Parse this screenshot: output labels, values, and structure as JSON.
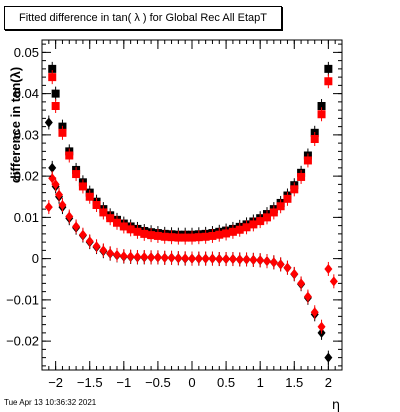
{
  "title": "Fitted difference in tan( λ ) for Global Rec All EtapT",
  "timestamp": "Tue Apr 13 10:36:32 2021",
  "chart_data": {
    "type": "scatter",
    "xlabel": "η",
    "ylabel": "difference in tan(λ)",
    "xlim": [
      -2.2,
      2.2
    ],
    "ylim": [
      -0.027,
      0.053
    ],
    "grid": false,
    "xticks": [
      {
        "v": -2,
        "label": "−2"
      },
      {
        "v": -1.5,
        "label": "−1.5"
      },
      {
        "v": -1,
        "label": "−1"
      },
      {
        "v": -0.5,
        "label": "−0.5"
      },
      {
        "v": 0,
        "label": "0"
      },
      {
        "v": 0.5,
        "label": "0.5"
      },
      {
        "v": 1,
        "label": "1"
      },
      {
        "v": 1.5,
        "label": "1.5"
      },
      {
        "v": 2,
        "label": "2"
      }
    ],
    "yticks": [
      {
        "v": -0.02,
        "label": "−0.02"
      },
      {
        "v": -0.01,
        "label": "−0.01"
      },
      {
        "v": 0,
        "label": "0"
      },
      {
        "v": 0.01,
        "label": "0.01"
      },
      {
        "v": 0.02,
        "label": "0.02"
      },
      {
        "v": 0.03,
        "label": "0.03"
      },
      {
        "v": 0.04,
        "label": "0.04"
      },
      {
        "v": 0.05,
        "label": "0.05"
      }
    ],
    "series": [
      {
        "marker": "square",
        "color": "#000000",
        "x": [
          -2.05,
          -2.0,
          -1.9,
          -1.8,
          -1.7,
          -1.6,
          -1.5,
          -1.4,
          -1.3,
          -1.2,
          -1.1,
          -1.0,
          -0.9,
          -0.8,
          -0.7,
          -0.6,
          -0.5,
          -0.4,
          -0.3,
          -0.2,
          -0.1,
          0.0,
          0.1,
          0.2,
          0.3,
          0.4,
          0.5,
          0.6,
          0.7,
          0.8,
          0.9,
          1.0,
          1.1,
          1.2,
          1.3,
          1.4,
          1.5,
          1.6,
          1.7,
          1.8,
          1.9,
          2.0
        ],
        "y": [
          0.046,
          0.04,
          0.032,
          0.026,
          0.0215,
          0.0185,
          0.016,
          0.0138,
          0.012,
          0.0105,
          0.0094,
          0.0085,
          0.0078,
          0.0072,
          0.0067,
          0.0064,
          0.0062,
          0.006,
          0.0059,
          0.0058,
          0.0058,
          0.0058,
          0.0059,
          0.006,
          0.0062,
          0.0065,
          0.0068,
          0.0072,
          0.0077,
          0.0083,
          0.009,
          0.0098,
          0.0108,
          0.012,
          0.0135,
          0.0153,
          0.0178,
          0.0208,
          0.025,
          0.0305,
          0.037,
          0.046
        ]
      },
      {
        "marker": "square",
        "color": "#ff0000",
        "x": [
          -2.05,
          -2.0,
          -1.9,
          -1.8,
          -1.7,
          -1.6,
          -1.5,
          -1.4,
          -1.3,
          -1.2,
          -1.1,
          -1.0,
          -0.9,
          -0.8,
          -0.7,
          -0.6,
          -0.5,
          -0.4,
          -0.3,
          -0.2,
          -0.1,
          0.0,
          0.1,
          0.2,
          0.3,
          0.4,
          0.5,
          0.6,
          0.7,
          0.8,
          0.9,
          1.0,
          1.1,
          1.2,
          1.3,
          1.4,
          1.5,
          1.6,
          1.7,
          1.8,
          1.9,
          2.0
        ],
        "y": [
          0.044,
          0.037,
          0.0305,
          0.025,
          0.0205,
          0.0175,
          0.015,
          0.013,
          0.0112,
          0.0098,
          0.0087,
          0.0078,
          0.0071,
          0.0065,
          0.006,
          0.0057,
          0.0055,
          0.0053,
          0.0052,
          0.0051,
          0.0051,
          0.0051,
          0.0052,
          0.0053,
          0.0055,
          0.0058,
          0.0061,
          0.0065,
          0.007,
          0.0076,
          0.0083,
          0.0091,
          0.01,
          0.0112,
          0.0127,
          0.0145,
          0.0168,
          0.0198,
          0.0238,
          0.029,
          0.035,
          0.043
        ]
      },
      {
        "marker": "diamond",
        "color": "#000000",
        "x": [
          -2.1,
          -2.05,
          -2.0,
          -1.95,
          -1.9,
          -1.8,
          -1.7,
          -1.6,
          -1.5,
          -1.4,
          -1.3,
          -1.2,
          -1.1,
          -1.0,
          -0.9,
          -0.8,
          -0.7,
          -0.6,
          -0.5,
          -0.4,
          -0.3,
          -0.2,
          -0.1,
          0.0,
          0.1,
          0.2,
          0.3,
          0.4,
          0.5,
          0.6,
          0.7,
          0.8,
          0.9,
          1.0,
          1.1,
          1.2,
          1.3,
          1.4,
          1.5,
          1.6,
          1.7,
          1.8,
          1.9,
          2.0
        ],
        "y": [
          0.033,
          0.022,
          0.0175,
          0.015,
          0.0125,
          0.0098,
          0.0075,
          0.0056,
          0.004,
          0.0028,
          0.0018,
          0.0012,
          0.0008,
          0.0005,
          0.0004,
          0.0003,
          0.0003,
          0.0003,
          0.0003,
          0.0002,
          0.0002,
          0.0001,
          0.0,
          0.0,
          0.0,
          0.0,
          0.0,
          -0.0001,
          -0.0001,
          -0.0001,
          -0.0002,
          -0.0002,
          -0.0003,
          -0.0004,
          -0.0006,
          -0.0009,
          -0.0014,
          -0.0022,
          -0.0038,
          -0.0062,
          -0.0095,
          -0.0135,
          -0.018,
          -0.024
        ]
      },
      {
        "marker": "diamond",
        "color": "#ff0000",
        "x": [
          -2.1,
          -2.05,
          -2.0,
          -1.95,
          -1.9,
          -1.8,
          -1.7,
          -1.6,
          -1.5,
          -1.4,
          -1.3,
          -1.2,
          -1.1,
          -1.0,
          -0.9,
          -0.8,
          -0.7,
          -0.6,
          -0.5,
          -0.4,
          -0.3,
          -0.2,
          -0.1,
          0.0,
          0.1,
          0.2,
          0.3,
          0.4,
          0.5,
          0.6,
          0.7,
          0.8,
          0.9,
          1.0,
          1.1,
          1.2,
          1.3,
          1.4,
          1.5,
          1.6,
          1.7,
          1.8,
          1.9,
          2.0,
          2.08
        ],
        "y": [
          0.0125,
          0.0195,
          0.018,
          0.0155,
          0.013,
          0.0102,
          0.0078,
          0.0058,
          0.0042,
          0.003,
          0.002,
          0.0013,
          0.0009,
          0.0006,
          0.0005,
          0.0004,
          0.0004,
          0.0003,
          0.0003,
          0.0002,
          0.0002,
          0.0001,
          0.0001,
          0.0,
          0.0,
          0.0,
          0.0,
          -0.0001,
          -0.0001,
          -0.0001,
          -0.0002,
          -0.0002,
          -0.0003,
          -0.0004,
          -0.0006,
          -0.0009,
          -0.0014,
          -0.0022,
          -0.0037,
          -0.006,
          -0.0092,
          -0.013,
          -0.0165,
          -0.0025,
          -0.0055
        ]
      }
    ]
  }
}
